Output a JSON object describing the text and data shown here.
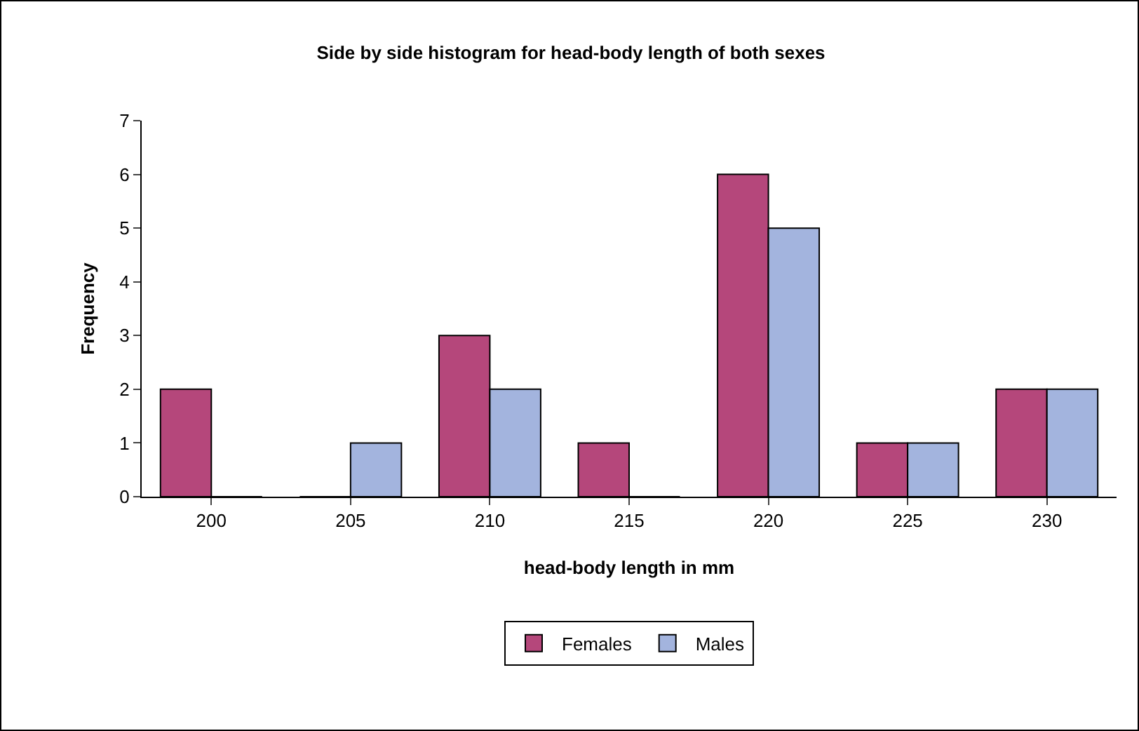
{
  "chart_data": {
    "type": "bar",
    "title": "Side by side histogram for head-body length of both sexes",
    "xlabel": "head-body length in mm",
    "ylabel": "Frequency",
    "categories": [
      "200",
      "205",
      "210",
      "215",
      "220",
      "225",
      "230"
    ],
    "series": [
      {
        "name": "Females",
        "color": "#b5477b",
        "values": [
          2,
          0,
          3,
          1,
          6,
          1,
          2
        ]
      },
      {
        "name": "Males",
        "color": "#a3b4de",
        "values": [
          0,
          1,
          2,
          0,
          5,
          1,
          2
        ]
      }
    ],
    "ylim": [
      0,
      7
    ],
    "yticks": [
      0,
      1,
      2,
      3,
      4,
      5,
      6,
      7
    ],
    "grid": false,
    "legend": "bottom"
  }
}
